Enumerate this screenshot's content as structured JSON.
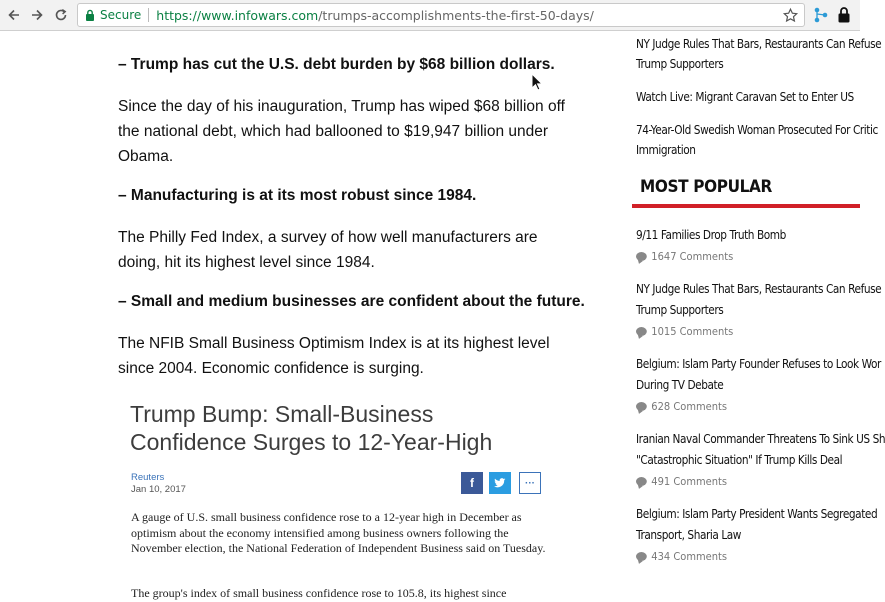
{
  "browser": {
    "secure_label": "Secure",
    "url_host": "https://www.infowars.com",
    "url_path": "/trumps-accomplishments-the-first-50-days/"
  },
  "article": {
    "sections": [
      {
        "lead": "– Trump has cut the U.S. debt burden by $68 billion dollars.",
        "body": "Since the day of his inauguration, Trump has wiped $68 billion off the national debt, which had ballooned to $19,947 billion under Obama."
      },
      {
        "lead": "– Manufacturing is at its most robust since 1984.",
        "body": "The Philly Fed Index, a survey of how well manufacturers are doing, hit its highest level since 1984."
      },
      {
        "lead": "– Small and medium businesses are confident about the future.",
        "body": "The NFIB Small Business Optimism Index is at its highest level since 2004. Economic confidence is surging."
      }
    ],
    "embed": {
      "title": "Trump Bump: Small-Business Confidence Surges to 12-Year-High",
      "source": "Reuters",
      "date": "Jan 10, 2017",
      "share_fb": "f",
      "share_more": "···",
      "body1": "A gauge of U.S. small business confidence rose to a 12-year high in December as optimism about the economy intensified among business owners following the November election, the National Federation of Independent Business said on Tuesday.",
      "body2": "The group's index of small business confidence rose to 105.8, its highest since"
    }
  },
  "sidebar": {
    "top_links": [
      "NY Judge Rules That Bars, Restaurants Can Refuse",
      "Trump Supporters",
      "Watch Live: Migrant Caravan Set to Enter US",
      "74-Year-Old Swedish Woman Prosecuted For Critic",
      "Immigration"
    ],
    "most_popular_title": "MOST POPULAR",
    "popular": [
      {
        "line1": "9/11 Families Drop Truth Bomb",
        "line2": "",
        "comments": "1647 Comments"
      },
      {
        "line1": "NY Judge Rules That Bars, Restaurants Can Refuse",
        "line2": "Trump Supporters",
        "comments": "1015 Comments"
      },
      {
        "line1": "Belgium: Islam Party Founder Refuses to Look Wor",
        "line2": "During TV Debate",
        "comments": "628 Comments"
      },
      {
        "line1": "Iranian Naval Commander Threatens To Sink US Sh",
        "line2": "\"Catastrophic Situation\" If Trump Kills Deal",
        "comments": "491 Comments"
      },
      {
        "line1": "Belgium: Islam Party President Wants Segregated",
        "line2": "Transport, Sharia Law",
        "comments": "434 Comments"
      }
    ]
  },
  "colors": {
    "secure_green": "#0b8043",
    "popular_rule": "#d12027",
    "facebook": "#3b5998",
    "twitter": "#2b9de1"
  }
}
